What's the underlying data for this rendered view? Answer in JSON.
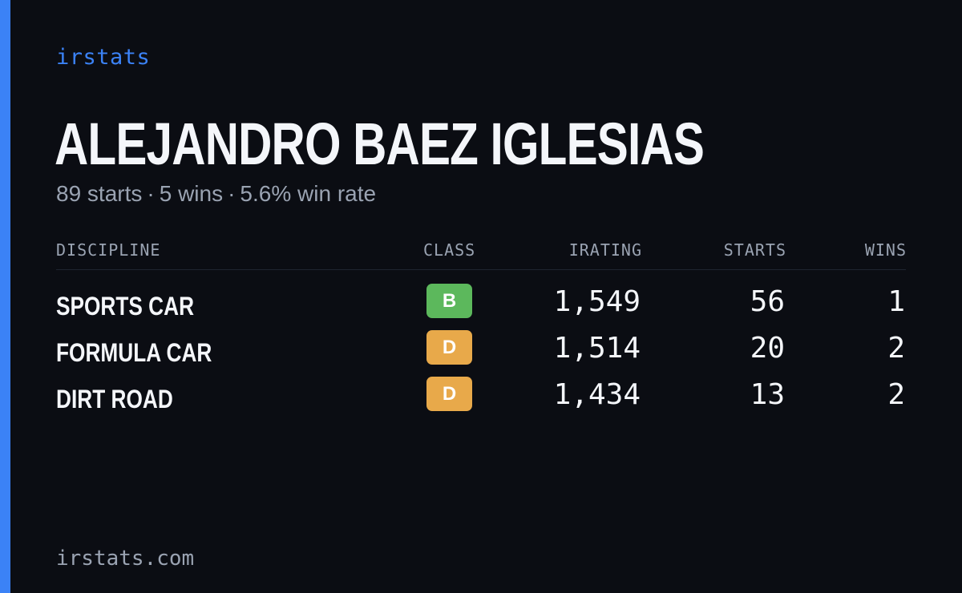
{
  "brand": "irstats",
  "player": {
    "name": "ALEJANDRO BAEZ IGLESIAS"
  },
  "summary": {
    "starts": "89 starts",
    "wins": "5 wins",
    "win_rate": "5.6% win rate",
    "separator": "·"
  },
  "table": {
    "headers": {
      "discipline": "DISCIPLINE",
      "class": "CLASS",
      "irating": "IRATING",
      "starts": "STARTS",
      "wins": "WINS"
    },
    "rows": [
      {
        "discipline": "SPORTS CAR",
        "class": "B",
        "class_color": "#5cb85c",
        "irating": "1,549",
        "starts": "56",
        "wins": "1"
      },
      {
        "discipline": "FORMULA CAR",
        "class": "D",
        "class_color": "#e8a94a",
        "irating": "1,514",
        "starts": "20",
        "wins": "2"
      },
      {
        "discipline": "DIRT ROAD",
        "class": "D",
        "class_color": "#e8a94a",
        "irating": "1,434",
        "starts": "13",
        "wins": "2"
      }
    ]
  },
  "footer": {
    "site": "irstats.com"
  },
  "colors": {
    "accent": "#3b82f6",
    "background": "#0b0d13",
    "text_primary": "#f4f6fa",
    "text_muted": "#9aa3b2"
  }
}
